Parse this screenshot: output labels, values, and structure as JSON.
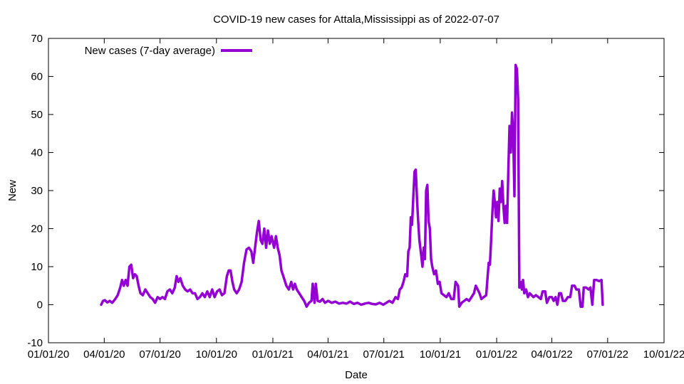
{
  "chart_data": {
    "type": "line",
    "title": "COVID-19 new cases for Attala,Mississippi as of 2022-07-07",
    "xlabel": "Date",
    "ylabel": "New",
    "xlim": [
      "2020-01-01",
      "2022-10-01"
    ],
    "ylim": [
      -10,
      70
    ],
    "x_ticks": [
      "01/01/20",
      "04/01/20",
      "07/01/20",
      "10/01/20",
      "01/01/21",
      "04/01/21",
      "07/01/21",
      "10/01/21",
      "01/01/22",
      "04/01/22",
      "07/01/22",
      "10/01/22"
    ],
    "y_ticks": [
      -10,
      0,
      10,
      20,
      30,
      40,
      50,
      60,
      70
    ],
    "grid": false,
    "legend_position": "top-left",
    "series": [
      {
        "name": "New cases (7-day average)",
        "color": "#9400d3",
        "points": [
          [
            "2020-03-27",
            0
          ],
          [
            "2020-03-30",
            1
          ],
          [
            "2020-04-02",
            1.2
          ],
          [
            "2020-04-06",
            0.6
          ],
          [
            "2020-04-10",
            1
          ],
          [
            "2020-04-14",
            0.5
          ],
          [
            "2020-04-19",
            1.5
          ],
          [
            "2020-04-23",
            2.5
          ],
          [
            "2020-04-27",
            4.5
          ],
          [
            "2020-04-30",
            6.5
          ],
          [
            "2020-05-03",
            5
          ],
          [
            "2020-05-06",
            6.5
          ],
          [
            "2020-05-09",
            5
          ],
          [
            "2020-05-12",
            10
          ],
          [
            "2020-05-15",
            10.5
          ],
          [
            "2020-05-18",
            7
          ],
          [
            "2020-05-21",
            8
          ],
          [
            "2020-05-24",
            7.5
          ],
          [
            "2020-05-27",
            5
          ],
          [
            "2020-05-30",
            3
          ],
          [
            "2020-06-03",
            2.5
          ],
          [
            "2020-06-07",
            4
          ],
          [
            "2020-06-11",
            3
          ],
          [
            "2020-06-15",
            2
          ],
          [
            "2020-06-19",
            1.5
          ],
          [
            "2020-06-23",
            0.5
          ],
          [
            "2020-06-27",
            2
          ],
          [
            "2020-07-01",
            1.5
          ],
          [
            "2020-07-05",
            2
          ],
          [
            "2020-07-09",
            1.5
          ],
          [
            "2020-07-13",
            3.5
          ],
          [
            "2020-07-17",
            4
          ],
          [
            "2020-07-21",
            3
          ],
          [
            "2020-07-25",
            4.5
          ],
          [
            "2020-07-28",
            7.5
          ],
          [
            "2020-07-31",
            6
          ],
          [
            "2020-08-03",
            7
          ],
          [
            "2020-08-07",
            5
          ],
          [
            "2020-08-11",
            4
          ],
          [
            "2020-08-15",
            3.5
          ],
          [
            "2020-08-19",
            4
          ],
          [
            "2020-08-23",
            3
          ],
          [
            "2020-08-27",
            3
          ],
          [
            "2020-08-31",
            1.5
          ],
          [
            "2020-09-04",
            2
          ],
          [
            "2020-09-08",
            3
          ],
          [
            "2020-09-12",
            2
          ],
          [
            "2020-09-16",
            3.5
          ],
          [
            "2020-09-20",
            2
          ],
          [
            "2020-09-24",
            4
          ],
          [
            "2020-09-28",
            2
          ],
          [
            "2020-10-02",
            3.5
          ],
          [
            "2020-10-06",
            4
          ],
          [
            "2020-10-10",
            2.5
          ],
          [
            "2020-10-14",
            3
          ],
          [
            "2020-10-18",
            7.5
          ],
          [
            "2020-10-21",
            9
          ],
          [
            "2020-10-24",
            9
          ],
          [
            "2020-10-27",
            6
          ],
          [
            "2020-10-30",
            4
          ],
          [
            "2020-11-03",
            3
          ],
          [
            "2020-11-07",
            4
          ],
          [
            "2020-11-11",
            6
          ],
          [
            "2020-11-15",
            11
          ],
          [
            "2020-11-19",
            14.5
          ],
          [
            "2020-11-23",
            15
          ],
          [
            "2020-11-27",
            14
          ],
          [
            "2020-11-30",
            11
          ],
          [
            "2020-12-03",
            15
          ],
          [
            "2020-12-06",
            19
          ],
          [
            "2020-12-09",
            22
          ],
          [
            "2020-12-12",
            17
          ],
          [
            "2020-12-15",
            16
          ],
          [
            "2020-12-18",
            20
          ],
          [
            "2020-12-21",
            15
          ],
          [
            "2020-12-24",
            19.5
          ],
          [
            "2020-12-27",
            16
          ],
          [
            "2020-12-30",
            18
          ],
          [
            "2021-01-03",
            15
          ],
          [
            "2021-01-06",
            18
          ],
          [
            "2021-01-09",
            15
          ],
          [
            "2021-01-12",
            13
          ],
          [
            "2021-01-15",
            9
          ],
          [
            "2021-01-19",
            7
          ],
          [
            "2021-01-23",
            5
          ],
          [
            "2021-01-27",
            4
          ],
          [
            "2021-01-31",
            6
          ],
          [
            "2021-02-03",
            4
          ],
          [
            "2021-02-06",
            5.5
          ],
          [
            "2021-02-09",
            4
          ],
          [
            "2021-02-13",
            3
          ],
          [
            "2021-02-17",
            2
          ],
          [
            "2021-02-21",
            1
          ],
          [
            "2021-02-25",
            -0.5
          ],
          [
            "2021-03-01",
            0.5
          ],
          [
            "2021-03-05",
            1
          ],
          [
            "2021-03-07",
            5.5
          ],
          [
            "2021-03-10",
            0.5
          ],
          [
            "2021-03-12",
            5.5
          ],
          [
            "2021-03-15",
            1
          ],
          [
            "2021-03-19",
            0.8
          ],
          [
            "2021-03-23",
            1.5
          ],
          [
            "2021-03-27",
            0.5
          ],
          [
            "2021-04-01",
            1
          ],
          [
            "2021-04-07",
            0.5
          ],
          [
            "2021-04-13",
            0.8
          ],
          [
            "2021-04-19",
            0.3
          ],
          [
            "2021-04-25",
            0.5
          ],
          [
            "2021-05-01",
            0.3
          ],
          [
            "2021-05-07",
            0.8
          ],
          [
            "2021-05-13",
            0.2
          ],
          [
            "2021-05-19",
            0.5
          ],
          [
            "2021-05-25",
            0
          ],
          [
            "2021-05-31",
            0.3
          ],
          [
            "2021-06-06",
            0.5
          ],
          [
            "2021-06-12",
            0.2
          ],
          [
            "2021-06-18",
            0.1
          ],
          [
            "2021-06-24",
            0.5
          ],
          [
            "2021-06-30",
            0
          ],
          [
            "2021-07-05",
            0.5
          ],
          [
            "2021-07-10",
            1
          ],
          [
            "2021-07-15",
            0.5
          ],
          [
            "2021-07-20",
            2
          ],
          [
            "2021-07-24",
            1.5
          ],
          [
            "2021-07-27",
            4
          ],
          [
            "2021-07-30",
            4.5
          ],
          [
            "2021-08-02",
            6
          ],
          [
            "2021-08-05",
            8
          ],
          [
            "2021-08-08",
            7.5
          ],
          [
            "2021-08-10",
            14
          ],
          [
            "2021-08-12",
            15
          ],
          [
            "2021-08-14",
            23
          ],
          [
            "2021-08-16",
            21
          ],
          [
            "2021-08-18",
            28
          ],
          [
            "2021-08-20",
            35
          ],
          [
            "2021-08-22",
            35.5
          ],
          [
            "2021-08-24",
            28
          ],
          [
            "2021-08-26",
            22
          ],
          [
            "2021-08-28",
            17
          ],
          [
            "2021-08-31",
            13
          ],
          [
            "2021-09-02",
            10
          ],
          [
            "2021-09-04",
            15
          ],
          [
            "2021-09-06",
            12
          ],
          [
            "2021-09-08",
            30
          ],
          [
            "2021-09-10",
            31.5
          ],
          [
            "2021-09-12",
            22
          ],
          [
            "2021-09-14",
            20
          ],
          [
            "2021-09-16",
            12
          ],
          [
            "2021-09-18",
            10
          ],
          [
            "2021-09-21",
            8
          ],
          [
            "2021-09-24",
            9
          ],
          [
            "2021-09-27",
            5.5
          ],
          [
            "2021-09-30",
            6
          ],
          [
            "2021-10-03",
            3
          ],
          [
            "2021-10-07",
            2.5
          ],
          [
            "2021-10-11",
            2
          ],
          [
            "2021-10-15",
            3
          ],
          [
            "2021-10-19",
            1.5
          ],
          [
            "2021-10-23",
            1.5
          ],
          [
            "2021-10-26",
            6
          ],
          [
            "2021-10-30",
            5
          ],
          [
            "2021-11-01",
            -0.5
          ],
          [
            "2021-11-05",
            0.5
          ],
          [
            "2021-11-09",
            1
          ],
          [
            "2021-11-13",
            1.5
          ],
          [
            "2021-11-17",
            1
          ],
          [
            "2021-11-21",
            2
          ],
          [
            "2021-11-25",
            3
          ],
          [
            "2021-11-28",
            5
          ],
          [
            "2021-12-01",
            4
          ],
          [
            "2021-12-04",
            3
          ],
          [
            "2021-12-07",
            1.5
          ],
          [
            "2021-12-11",
            2
          ],
          [
            "2021-12-15",
            2.5
          ],
          [
            "2021-12-17",
            7
          ],
          [
            "2021-12-19",
            11
          ],
          [
            "2021-12-21",
            10.5
          ],
          [
            "2021-12-23",
            17
          ],
          [
            "2021-12-25",
            24
          ],
          [
            "2021-12-27",
            30
          ],
          [
            "2021-12-29",
            27
          ],
          [
            "2021-12-31",
            23
          ],
          [
            "2022-01-02",
            27
          ],
          [
            "2022-01-04",
            22
          ],
          [
            "2022-01-06",
            30.5
          ],
          [
            "2022-01-08",
            27
          ],
          [
            "2022-01-10",
            32.5
          ],
          [
            "2022-01-12",
            26
          ],
          [
            "2022-01-14",
            21.5
          ],
          [
            "2022-01-16",
            26
          ],
          [
            "2022-01-18",
            21.5
          ],
          [
            "2022-01-20",
            35
          ],
          [
            "2022-01-22",
            47
          ],
          [
            "2022-01-24",
            40
          ],
          [
            "2022-01-26",
            50.5
          ],
          [
            "2022-01-28",
            45
          ],
          [
            "2022-01-30",
            28.5
          ],
          [
            "2022-02-01",
            63
          ],
          [
            "2022-02-03",
            62
          ],
          [
            "2022-02-05",
            54
          ],
          [
            "2022-02-07",
            4.5
          ],
          [
            "2022-02-09",
            6
          ],
          [
            "2022-02-11",
            4
          ],
          [
            "2022-02-13",
            6.5
          ],
          [
            "2022-02-15",
            3
          ],
          [
            "2022-02-18",
            4
          ],
          [
            "2022-02-21",
            2
          ],
          [
            "2022-02-24",
            3
          ],
          [
            "2022-02-27",
            2.5
          ],
          [
            "2022-03-02",
            2
          ],
          [
            "2022-03-06",
            2.5
          ],
          [
            "2022-03-10",
            2
          ],
          [
            "2022-03-14",
            1.5
          ],
          [
            "2022-03-17",
            3.5
          ],
          [
            "2022-03-21",
            3.5
          ],
          [
            "2022-03-24",
            0.5
          ],
          [
            "2022-03-28",
            2
          ],
          [
            "2022-04-01",
            2
          ],
          [
            "2022-04-04",
            1
          ],
          [
            "2022-04-07",
            2
          ],
          [
            "2022-04-10",
            0
          ],
          [
            "2022-04-13",
            3
          ],
          [
            "2022-04-16",
            3
          ],
          [
            "2022-04-19",
            1
          ],
          [
            "2022-04-23",
            1
          ],
          [
            "2022-04-27",
            2
          ],
          [
            "2022-05-01",
            2
          ],
          [
            "2022-05-04",
            5
          ],
          [
            "2022-05-08",
            5
          ],
          [
            "2022-05-11",
            4
          ],
          [
            "2022-05-15",
            4
          ],
          [
            "2022-05-18",
            -0.5
          ],
          [
            "2022-05-21",
            -0.5
          ],
          [
            "2022-05-23",
            4.5
          ],
          [
            "2022-05-27",
            4.5
          ],
          [
            "2022-05-31",
            4
          ],
          [
            "2022-06-03",
            4.5
          ],
          [
            "2022-06-06",
            0
          ],
          [
            "2022-06-09",
            6.5
          ],
          [
            "2022-06-13",
            6.5
          ],
          [
            "2022-06-17",
            6.2
          ],
          [
            "2022-06-21",
            6.5
          ],
          [
            "2022-06-23",
            0
          ]
        ]
      }
    ]
  }
}
